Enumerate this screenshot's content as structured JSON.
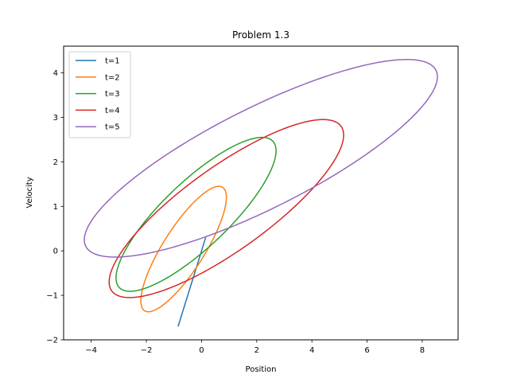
{
  "chart_data": {
    "type": "line",
    "title": "Problem 1.3",
    "xlabel": "Position",
    "ylabel": "Velocity",
    "xlim": [
      -5.0,
      9.3
    ],
    "ylim": [
      -2.0,
      4.6
    ],
    "xticks": [
      -4,
      -2,
      0,
      2,
      4,
      6,
      8
    ],
    "yticks": [
      -2,
      -1,
      0,
      1,
      2,
      3,
      4
    ],
    "legend": "top-left",
    "series": [
      {
        "name": "t=1",
        "color": "#1f77b4",
        "shape": "segment",
        "x": [
          -0.85,
          0.15
        ],
        "y": [
          -1.7,
          0.3
        ]
      },
      {
        "name": "t=2",
        "color": "#ff7f0e",
        "shape": "ellipse",
        "cx": -0.65,
        "cy": 0.04,
        "rx": 1.55,
        "ry": 1.41
      },
      {
        "name": "t=3",
        "color": "#2ca02c",
        "shape": "ellipse",
        "cx": -0.2,
        "cy": 0.82,
        "rx": 2.9,
        "ry": 1.73
      },
      {
        "name": "t=4",
        "color": "#d62728",
        "shape": "ellipse",
        "cx": 0.9,
        "cy": 0.95,
        "rx": 4.25,
        "ry": 2.0
      },
      {
        "name": "t=5",
        "color": "#9467bd",
        "shape": "ellipse",
        "cx": 2.15,
        "cy": 2.08,
        "rx": 6.4,
        "ry": 2.22
      }
    ]
  }
}
